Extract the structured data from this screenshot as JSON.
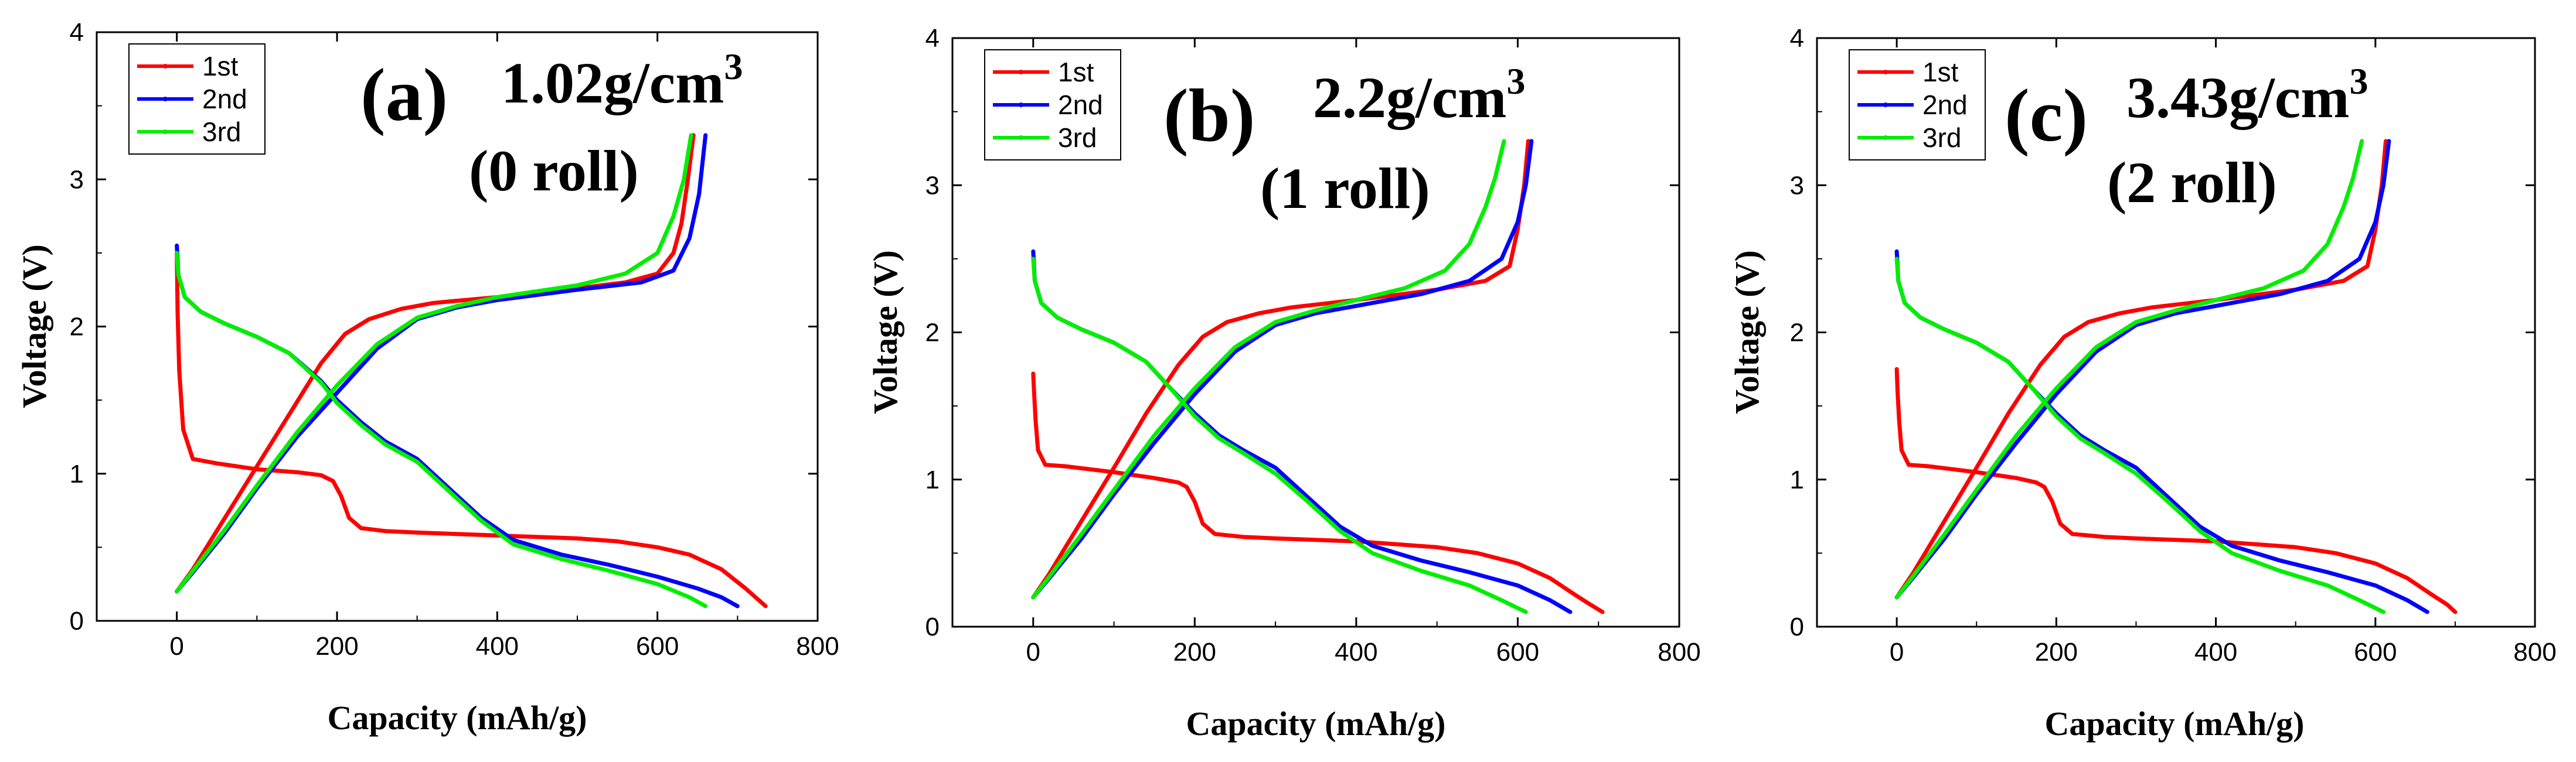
{
  "chart_data": [
    {
      "type": "line",
      "panel_label": "(a)",
      "annotation_density": "1.02g/cm",
      "annotation_sup": "3",
      "annotation_roll": "(0 roll)",
      "xlabel": "Capacity (mAh/g)",
      "ylabel": "Voltage (V)",
      "xlim": [
        -100,
        800
      ],
      "ylim": [
        0,
        4
      ],
      "xticks": [
        "0",
        "200",
        "400",
        "600",
        "800"
      ],
      "yticks": [
        "0",
        "1",
        "2",
        "3",
        "4"
      ],
      "grid": false,
      "legend_position": "top-left",
      "series": [
        {
          "name": "1st",
          "color": "#ff0000",
          "discharge": {
            "x": [
              0,
              1,
              3,
              8,
              20,
              50,
              100,
              150,
              180,
              195,
              205,
              215,
              230,
              260,
              300,
              350,
              400,
              450,
              500,
              550,
              600,
              640,
              680,
              710,
              735
            ],
            "y": [
              2.5,
              2.1,
              1.7,
              1.3,
              1.1,
              1.07,
              1.03,
              1.01,
              0.99,
              0.95,
              0.85,
              0.7,
              0.63,
              0.61,
              0.6,
              0.59,
              0.58,
              0.57,
              0.56,
              0.54,
              0.5,
              0.45,
              0.35,
              0.22,
              0.1
            ]
          },
          "charge": {
            "x": [
              0,
              20,
              60,
              100,
              140,
              180,
              210,
              240,
              280,
              320,
              400,
              500,
              560,
              600,
              620,
              630,
              638,
              645
            ],
            "y": [
              0.2,
              0.35,
              0.7,
              1.05,
              1.4,
              1.75,
              1.95,
              2.05,
              2.12,
              2.16,
              2.2,
              2.26,
              2.3,
              2.36,
              2.5,
              2.7,
              3.0,
              3.3
            ]
          }
        },
        {
          "name": "2nd",
          "color": "#0000ff",
          "discharge": {
            "x": [
              0,
              2,
              10,
              30,
              60,
              100,
              140,
              180,
              200,
              230,
              260,
              300,
              340,
              380,
              420,
              480,
              540,
              600,
              650,
              680,
              700
            ],
            "y": [
              2.55,
              2.35,
              2.2,
              2.1,
              2.02,
              1.93,
              1.82,
              1.63,
              1.5,
              1.35,
              1.22,
              1.1,
              0.9,
              0.7,
              0.55,
              0.45,
              0.38,
              0.3,
              0.22,
              0.16,
              0.1
            ]
          },
          "charge": {
            "x": [
              0,
              20,
              60,
              100,
              150,
              200,
              250,
              300,
              350,
              400,
              500,
              580,
              620,
              640,
              652,
              660
            ],
            "y": [
              0.2,
              0.33,
              0.6,
              0.9,
              1.25,
              1.55,
              1.85,
              2.05,
              2.13,
              2.18,
              2.25,
              2.3,
              2.38,
              2.6,
              2.9,
              3.3
            ]
          }
        },
        {
          "name": "3rd",
          "color": "#00ee00",
          "discharge": {
            "x": [
              0,
              2,
              10,
              30,
              60,
              100,
              140,
              180,
              200,
              230,
              260,
              300,
              340,
              380,
              420,
              480,
              540,
              600,
              640,
              660
            ],
            "y": [
              2.5,
              2.35,
              2.2,
              2.1,
              2.02,
              1.93,
              1.82,
              1.62,
              1.48,
              1.33,
              1.2,
              1.08,
              0.88,
              0.68,
              0.52,
              0.42,
              0.34,
              0.25,
              0.16,
              0.1
            ]
          },
          "charge": {
            "x": [
              0,
              20,
              60,
              100,
              150,
              200,
              250,
              300,
              350,
              400,
              500,
              560,
              600,
              620,
              633,
              642
            ],
            "y": [
              0.2,
              0.34,
              0.62,
              0.92,
              1.28,
              1.6,
              1.88,
              2.06,
              2.14,
              2.2,
              2.28,
              2.36,
              2.5,
              2.75,
              3.0,
              3.3
            ]
          }
        }
      ]
    },
    {
      "type": "line",
      "panel_label": "(b)",
      "annotation_density": "2.2g/cm",
      "annotation_sup": "3",
      "annotation_roll": "(1 roll)",
      "xlabel": "Capacity (mAh/g)",
      "ylabel": "Voltage (V)",
      "xlim": [
        -100,
        800
      ],
      "ylim": [
        0,
        4
      ],
      "xticks": [
        "0",
        "200",
        "400",
        "600",
        "800"
      ],
      "yticks": [
        "0",
        "1",
        "2",
        "3",
        "4"
      ],
      "grid": false,
      "legend_position": "top-left",
      "series": [
        {
          "name": "1st",
          "color": "#ff0000",
          "discharge": {
            "x": [
              0,
              1,
              3,
              6,
              15,
              40,
              100,
              150,
              180,
              190,
              200,
              210,
              225,
              260,
              300,
              350,
              400,
              450,
              500,
              550,
              600,
              640,
              670,
              690,
              705
            ],
            "y": [
              1.72,
              1.6,
              1.4,
              1.2,
              1.1,
              1.09,
              1.05,
              1.01,
              0.98,
              0.95,
              0.85,
              0.7,
              0.63,
              0.61,
              0.6,
              0.59,
              0.58,
              0.56,
              0.54,
              0.5,
              0.43,
              0.33,
              0.22,
              0.15,
              0.1
            ]
          },
          "charge": {
            "x": [
              0,
              20,
              60,
              100,
              140,
              180,
              210,
              240,
              280,
              320,
              400,
              500,
              560,
              590,
              600,
              608,
              613
            ],
            "y": [
              0.2,
              0.36,
              0.72,
              1.08,
              1.45,
              1.78,
              1.97,
              2.07,
              2.13,
              2.17,
              2.22,
              2.29,
              2.35,
              2.45,
              2.7,
              3.0,
              3.3
            ]
          }
        },
        {
          "name": "2nd",
          "color": "#0000ff",
          "discharge": {
            "x": [
              0,
              2,
              10,
              30,
              60,
              100,
              140,
              170,
              200,
              230,
              260,
              300,
              340,
              380,
              420,
              480,
              540,
              600,
              640,
              665
            ],
            "y": [
              2.55,
              2.35,
              2.2,
              2.1,
              2.02,
              1.93,
              1.8,
              1.62,
              1.45,
              1.3,
              1.2,
              1.08,
              0.88,
              0.68,
              0.55,
              0.45,
              0.37,
              0.28,
              0.18,
              0.1
            ]
          },
          "charge": {
            "x": [
              0,
              20,
              60,
              100,
              150,
              200,
              250,
              300,
              350,
              400,
              480,
              540,
              580,
              600,
              610,
              617
            ],
            "y": [
              0.2,
              0.33,
              0.6,
              0.9,
              1.25,
              1.58,
              1.87,
              2.05,
              2.13,
              2.18,
              2.26,
              2.35,
              2.5,
              2.75,
              3.0,
              3.3
            ]
          }
        },
        {
          "name": "3rd",
          "color": "#00ee00",
          "discharge": {
            "x": [
              0,
              2,
              10,
              30,
              60,
              100,
              140,
              170,
              200,
              230,
              260,
              300,
              340,
              380,
              420,
              480,
              540,
              580,
              610
            ],
            "y": [
              2.5,
              2.35,
              2.2,
              2.1,
              2.02,
              1.93,
              1.8,
              1.62,
              1.43,
              1.28,
              1.18,
              1.04,
              0.85,
              0.65,
              0.5,
              0.38,
              0.28,
              0.18,
              0.1
            ]
          },
          "charge": {
            "x": [
              0,
              20,
              60,
              100,
              150,
              200,
              250,
              300,
              350,
              400,
              460,
              510,
              540,
              560,
              572,
              583
            ],
            "y": [
              0.2,
              0.34,
              0.63,
              0.93,
              1.3,
              1.62,
              1.9,
              2.07,
              2.15,
              2.22,
              2.3,
              2.42,
              2.6,
              2.85,
              3.05,
              3.3
            ]
          }
        }
      ]
    },
    {
      "type": "line",
      "panel_label": "(c)",
      "annotation_density": "3.43g/cm",
      "annotation_sup": "3",
      "annotation_roll": "(2 roll)",
      "xlabel": "Capacity (mAh/g)",
      "ylabel": "Voltage (V)",
      "xlim": [
        -100,
        800
      ],
      "ylim": [
        0,
        4
      ],
      "xticks": [
        "0",
        "200",
        "400",
        "600",
        "800"
      ],
      "yticks": [
        "0",
        "1",
        "2",
        "3",
        "4"
      ],
      "grid": false,
      "legend_position": "top-left",
      "series": [
        {
          "name": "1st",
          "color": "#ff0000",
          "discharge": {
            "x": [
              0,
              1,
              3,
              6,
              15,
              40,
              100,
              150,
              175,
              185,
              195,
              205,
              220,
              260,
              300,
              350,
              400,
              450,
              500,
              550,
              600,
              640,
              670,
              690,
              700
            ],
            "y": [
              1.75,
              1.6,
              1.4,
              1.2,
              1.1,
              1.09,
              1.05,
              1.01,
              0.98,
              0.95,
              0.85,
              0.7,
              0.63,
              0.61,
              0.6,
              0.59,
              0.58,
              0.56,
              0.54,
              0.5,
              0.43,
              0.33,
              0.22,
              0.15,
              0.1
            ]
          },
          "charge": {
            "x": [
              0,
              20,
              60,
              100,
              140,
              180,
              210,
              240,
              280,
              320,
              400,
              500,
              560,
              590,
              600,
              608,
              613
            ],
            "y": [
              0.2,
              0.36,
              0.72,
              1.08,
              1.45,
              1.78,
              1.97,
              2.07,
              2.13,
              2.17,
              2.22,
              2.29,
              2.35,
              2.45,
              2.7,
              3.0,
              3.3
            ]
          }
        },
        {
          "name": "2nd",
          "color": "#0000ff",
          "discharge": {
            "x": [
              0,
              2,
              10,
              30,
              60,
              100,
              140,
              170,
              200,
              230,
              260,
              300,
              340,
              380,
              420,
              480,
              540,
              600,
              640,
              665
            ],
            "y": [
              2.55,
              2.35,
              2.2,
              2.1,
              2.02,
              1.93,
              1.8,
              1.62,
              1.45,
              1.3,
              1.2,
              1.08,
              0.88,
              0.68,
              0.55,
              0.45,
              0.37,
              0.28,
              0.18,
              0.1
            ]
          },
          "charge": {
            "x": [
              0,
              20,
              60,
              100,
              150,
              200,
              250,
              300,
              350,
              400,
              480,
              540,
              580,
              600,
              610,
              617
            ],
            "y": [
              0.2,
              0.33,
              0.6,
              0.9,
              1.25,
              1.58,
              1.87,
              2.05,
              2.13,
              2.18,
              2.26,
              2.35,
              2.5,
              2.75,
              3.0,
              3.3
            ]
          }
        },
        {
          "name": "3rd",
          "color": "#00ee00",
          "discharge": {
            "x": [
              0,
              2,
              10,
              30,
              60,
              100,
              140,
              170,
              200,
              230,
              260,
              300,
              340,
              380,
              420,
              480,
              540,
              580,
              610
            ],
            "y": [
              2.5,
              2.35,
              2.2,
              2.1,
              2.02,
              1.93,
              1.8,
              1.62,
              1.43,
              1.28,
              1.18,
              1.04,
              0.85,
              0.65,
              0.5,
              0.38,
              0.28,
              0.18,
              0.1
            ]
          },
          "charge": {
            "x": [
              0,
              20,
              60,
              100,
              150,
              200,
              250,
              300,
              350,
              400,
              460,
              510,
              540,
              560,
              572,
              583
            ],
            "y": [
              0.2,
              0.34,
              0.63,
              0.93,
              1.3,
              1.62,
              1.9,
              2.07,
              2.15,
              2.22,
              2.3,
              2.42,
              2.6,
              2.85,
              3.05,
              3.3
            ]
          }
        }
      ]
    }
  ]
}
